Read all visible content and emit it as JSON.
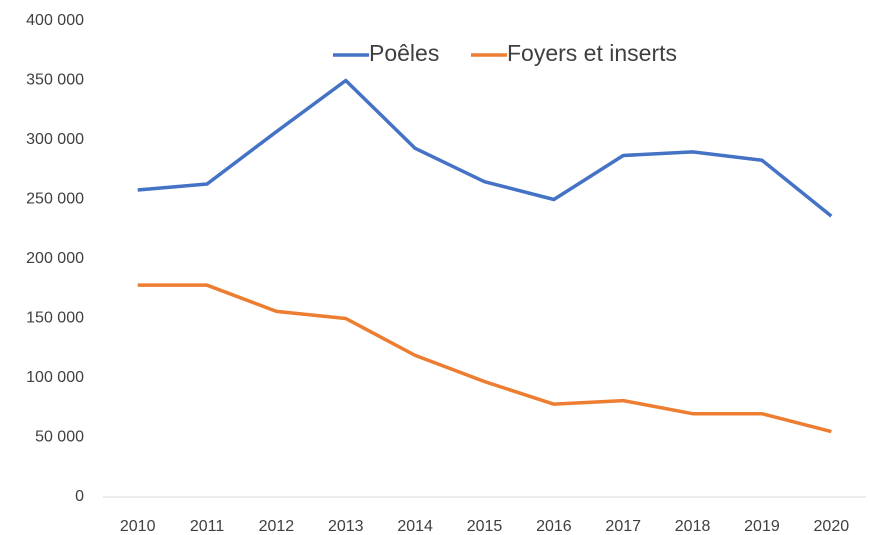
{
  "chart_data": {
    "type": "line",
    "categories": [
      "2010",
      "2011",
      "2012",
      "2013",
      "2014",
      "2015",
      "2016",
      "2017",
      "2018",
      "2019",
      "2020"
    ],
    "series": [
      {
        "name": "Poêles",
        "color": "#4472c4",
        "values": [
          258000,
          263000,
          307000,
          350000,
          293000,
          265000,
          250000,
          287000,
          290000,
          283000,
          236000
        ]
      },
      {
        "name": "Foyers et inserts",
        "color": "#ed7d31",
        "values": [
          178000,
          178000,
          156000,
          150000,
          119000,
          97000,
          78000,
          81000,
          70000,
          70000,
          55000
        ]
      }
    ],
    "ylim": [
      0,
      400000
    ],
    "yticks": [
      {
        "value": 0,
        "label": "0"
      },
      {
        "value": 50000,
        "label": "50 000"
      },
      {
        "value": 100000,
        "label": "100 000"
      },
      {
        "value": 150000,
        "label": "150 000"
      },
      {
        "value": 200000,
        "label": "200 000"
      },
      {
        "value": 250000,
        "label": "250 000"
      },
      {
        "value": 300000,
        "label": "300 000"
      },
      {
        "value": 350000,
        "label": "350 000"
      },
      {
        "value": 400000,
        "label": "400 000"
      }
    ],
    "grid": false,
    "legend": "top"
  }
}
